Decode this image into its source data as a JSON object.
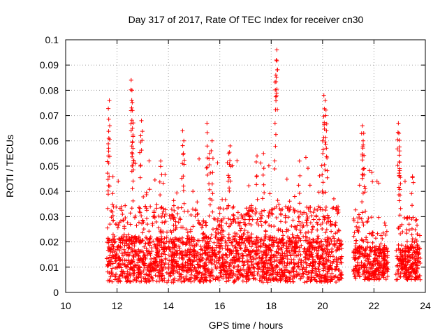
{
  "chart_data": {
    "type": "scatter",
    "title": "Day 317 of 2017, Rate Of TEC Index for receiver cn30",
    "xlabel": "GPS time / hours",
    "ylabel": "ROTI / TECUs",
    "xlim": [
      10,
      24
    ],
    "ylim": [
      0,
      0.1
    ],
    "x_ticks": [
      10,
      12,
      14,
      16,
      18,
      20,
      22,
      24
    ],
    "x_tick_labels": [
      "10",
      "12",
      "14",
      "16",
      "18",
      "20",
      "22",
      "24"
    ],
    "y_ticks": [
      0,
      0.01,
      0.02,
      0.03,
      0.04,
      0.05,
      0.06,
      0.07,
      0.08,
      0.09,
      0.1
    ],
    "y_tick_labels": [
      "0",
      "0.01",
      "0.02",
      "0.03",
      "0.04",
      "0.05",
      "0.06",
      "0.07",
      "0.08",
      "0.09",
      "0.1"
    ],
    "grid": true,
    "marker": "+",
    "color": "#ff0000",
    "segments": [
      {
        "x_start": 11.6,
        "x_end": 13.95,
        "baseline_min": 0.004,
        "baseline_max": 0.022
      },
      {
        "x_start": 14.0,
        "x_end": 20.75,
        "baseline_min": 0.004,
        "baseline_max": 0.022
      },
      {
        "x_start": 21.2,
        "x_end": 22.55,
        "baseline_min": 0.005,
        "baseline_max": 0.018
      },
      {
        "x_start": 22.85,
        "x_end": 23.8,
        "baseline_min": 0.005,
        "baseline_max": 0.018
      }
    ],
    "peaks": [
      {
        "x": 11.7,
        "y": 0.076
      },
      {
        "x": 11.68,
        "y": 0.061
      },
      {
        "x": 11.66,
        "y": 0.054
      },
      {
        "x": 12.55,
        "y": 0.084
      },
      {
        "x": 12.58,
        "y": 0.08
      },
      {
        "x": 12.6,
        "y": 0.072
      },
      {
        "x": 12.6,
        "y": 0.065
      },
      {
        "x": 12.62,
        "y": 0.057
      },
      {
        "x": 12.95,
        "y": 0.068
      },
      {
        "x": 12.92,
        "y": 0.062
      },
      {
        "x": 13.7,
        "y": 0.052
      },
      {
        "x": 14.55,
        "y": 0.064
      },
      {
        "x": 14.6,
        "y": 0.06
      },
      {
        "x": 15.5,
        "y": 0.067
      },
      {
        "x": 15.7,
        "y": 0.06
      },
      {
        "x": 15.6,
        "y": 0.055
      },
      {
        "x": 16.4,
        "y": 0.058
      },
      {
        "x": 16.35,
        "y": 0.055
      },
      {
        "x": 17.45,
        "y": 0.054
      },
      {
        "x": 17.7,
        "y": 0.055
      },
      {
        "x": 18.15,
        "y": 0.067
      },
      {
        "x": 18.22,
        "y": 0.096
      },
      {
        "x": 18.2,
        "y": 0.092
      },
      {
        "x": 18.18,
        "y": 0.086
      },
      {
        "x": 19.1,
        "y": 0.052
      },
      {
        "x": 20.05,
        "y": 0.078
      },
      {
        "x": 20.1,
        "y": 0.076
      },
      {
        "x": 20.12,
        "y": 0.07
      },
      {
        "x": 20.15,
        "y": 0.064
      },
      {
        "x": 20.0,
        "y": 0.06
      },
      {
        "x": 21.55,
        "y": 0.066
      },
      {
        "x": 21.6,
        "y": 0.063
      },
      {
        "x": 21.58,
        "y": 0.06
      },
      {
        "x": 22.95,
        "y": 0.067
      },
      {
        "x": 22.97,
        "y": 0.063
      },
      {
        "x": 23.0,
        "y": 0.056
      },
      {
        "x": 23.0,
        "y": 0.049
      },
      {
        "x": 23.5,
        "y": 0.046
      }
    ],
    "background_points_estimated": 3000
  }
}
